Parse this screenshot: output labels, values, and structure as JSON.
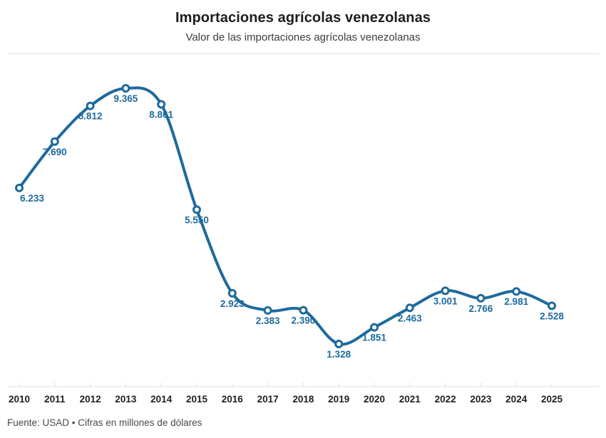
{
  "header": {
    "title": "Importaciones agrícolas venezolanas",
    "subtitle": "Valor de las importaciones agrícolas venezolanas"
  },
  "footer": {
    "source": "Fuente: USAD • Cifras en millones de dólares"
  },
  "chart_data": {
    "type": "line",
    "title": "Importaciones agrícolas venezolanas",
    "subtitle": "Valor de las importaciones agrícolas venezolanas",
    "source_note": "Fuente: USAD • Cifras en millones de dólares",
    "unit": "millones de dólares",
    "categories": [
      "2010",
      "2011",
      "2012",
      "2013",
      "2014",
      "2015",
      "2016",
      "2017",
      "2018",
      "2019",
      "2020",
      "2021",
      "2022",
      "2023",
      "2024",
      "2025"
    ],
    "values": [
      6233,
      7690,
      8812,
      9365,
      8861,
      5550,
      2923,
      2383,
      2390,
      1328,
      1851,
      2463,
      3001,
      2766,
      2981,
      2528
    ],
    "point_labels": [
      "6.233",
      "7.690",
      "8.812",
      "9.365",
      "8.861",
      "5.550",
      "2.923",
      "2.383",
      "2.390",
      "1.328",
      "1.851",
      "2.463",
      "3.001",
      "2.766",
      "2.981",
      "2.528"
    ],
    "xlabel": "",
    "ylabel": "",
    "ylim": [
      1328,
      9365
    ],
    "grid": false,
    "legend": "none",
    "y_axis_visible": false,
    "smooth": true,
    "line_color": "#1e6a9c",
    "marker_fill": "#ffffff",
    "label_color": "#1e6a9c",
    "axis_color": "#dcdcdc",
    "tick_label_color": "#1f1f1f"
  }
}
